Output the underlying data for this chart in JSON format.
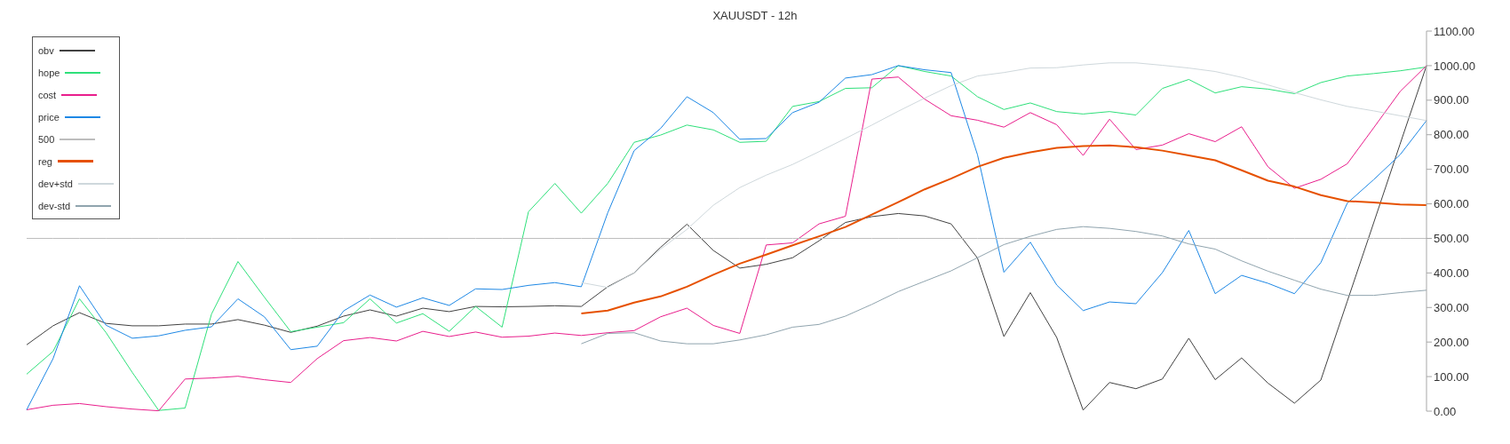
{
  "chart_data": {
    "type": "line",
    "title": "XAUUSDT - 12h",
    "categories": [
      null,
      null,
      null,
      null,
      null,
      null,
      null,
      null,
      null,
      null,
      null,
      null,
      null,
      null,
      null,
      null,
      null,
      null,
      null,
      null,
      null,
      null,
      null,
      null,
      null,
      null,
      null,
      null,
      null,
      null,
      null,
      null,
      null,
      null,
      null,
      null,
      null,
      null,
      null,
      null,
      null,
      null,
      null,
      null,
      null,
      null,
      null,
      null,
      null,
      null,
      null,
      null,
      null,
      null
    ],
    "series": [
      {
        "name": "obv",
        "color": "#424242",
        "values": [
          192,
          247,
          285,
          254,
          247,
          247,
          252,
          252,
          265,
          249,
          228,
          246,
          275,
          293,
          275,
          298,
          288,
          303,
          302,
          303,
          305,
          303,
          360,
          400,
          474,
          541,
          465,
          414,
          425,
          444,
          493,
          546,
          563,
          572,
          565,
          542,
          443,
          216,
          343,
          213,
          3,
          83,
          65,
          93,
          211,
          91,
          154,
          81,
          23,
          90,
          318,
          545,
          773,
          1000
        ]
      },
      {
        "name": "hope",
        "color": "#2ee07a",
        "values": [
          107,
          173,
          325,
          228,
          112,
          2,
          9,
          281,
          433,
          330,
          230,
          243,
          256,
          325,
          255,
          282,
          231,
          303,
          243,
          577,
          659,
          573,
          659,
          778,
          799,
          828,
          814,
          778,
          781,
          882,
          896,
          934,
          936,
          1000,
          983,
          970,
          910,
          873,
          892,
          867,
          860,
          867,
          857,
          934,
          960,
          921,
          939,
          932,
          919,
          951,
          970,
          977,
          985,
          996
        ]
      },
      {
        "name": "cost",
        "color": "#e91e8c",
        "values": [
          4,
          17,
          22,
          13,
          6,
          1,
          93,
          96,
          101,
          91,
          83,
          152,
          204,
          213,
          203,
          231,
          216,
          229,
          214,
          217,
          226,
          219,
          227,
          233,
          273,
          298,
          248,
          225,
          481,
          487,
          542,
          564,
          961,
          967,
          903,
          855,
          842,
          822,
          864,
          829,
          740,
          845,
          757,
          770,
          803,
          780,
          823,
          707,
          645,
          671,
          716,
          820,
          925,
          1000
        ]
      },
      {
        "name": "price",
        "color": "#1e88e5",
        "values": [
          4,
          152,
          363,
          249,
          211,
          218,
          234,
          244,
          325,
          273,
          178,
          188,
          290,
          336,
          301,
          328,
          306,
          354,
          352,
          364,
          372,
          360,
          574,
          754,
          818,
          910,
          864,
          787,
          789,
          864,
          894,
          964,
          974,
          1000,
          988,
          980,
          742,
          402,
          489,
          365,
          291,
          316,
          311,
          401,
          523,
          340,
          393,
          370,
          340,
          430,
          602,
          670,
          742,
          841
        ]
      },
      {
        "name": "500",
        "color": "#bdbdbd",
        "values": [
          500,
          500,
          500,
          500,
          500,
          500,
          500,
          500,
          500,
          500,
          500,
          500,
          500,
          500,
          500,
          500,
          500,
          500,
          500,
          500,
          500,
          500,
          500,
          500,
          500,
          500,
          500,
          500,
          500,
          500,
          500,
          500,
          500,
          500,
          500,
          500,
          500,
          500,
          500,
          500,
          500,
          500,
          500,
          500,
          500,
          500,
          500,
          500,
          500,
          500,
          500,
          500,
          500,
          500
        ]
      },
      {
        "name": "reg",
        "color": "#e65100",
        "values": [
          null,
          null,
          null,
          null,
          null,
          null,
          null,
          null,
          null,
          null,
          null,
          null,
          null,
          null,
          null,
          null,
          null,
          null,
          null,
          null,
          null,
          283,
          291,
          314,
          332,
          360,
          395,
          427,
          453,
          480,
          506,
          533,
          569,
          605,
          642,
          673,
          707,
          733,
          749,
          762,
          767,
          769,
          764,
          754,
          740,
          726,
          697,
          667,
          650,
          625,
          608,
          604,
          598,
          596
        ]
      },
      {
        "name": "dev+std",
        "color": "#cfd8dc",
        "values": [
          null,
          null,
          null,
          null,
          null,
          null,
          null,
          null,
          null,
          null,
          null,
          null,
          null,
          null,
          null,
          null,
          null,
          null,
          null,
          null,
          null,
          372,
          358,
          400,
          469,
          526,
          596,
          647,
          683,
          714,
          751,
          789,
          828,
          868,
          906,
          942,
          970,
          980,
          993,
          994,
          1002,
          1008,
          1008,
          1001,
          993,
          983,
          966,
          944,
          922,
          901,
          882,
          869,
          855,
          841
        ]
      },
      {
        "name": "dev-std",
        "color": "#90a4ae",
        "values": [
          null,
          null,
          null,
          null,
          null,
          null,
          null,
          null,
          null,
          null,
          null,
          null,
          null,
          null,
          null,
          null,
          null,
          null,
          null,
          null,
          null,
          195,
          225,
          227,
          203,
          195,
          195,
          206,
          221,
          243,
          251,
          275,
          309,
          346,
          376,
          406,
          444,
          482,
          506,
          526,
          534,
          529,
          520,
          507,
          484,
          469,
          435,
          405,
          379,
          353,
          335,
          335,
          343,
          350
        ]
      }
    ],
    "ylim": [
      0,
      1100
    ],
    "yticks": [
      {
        "value": 0,
        "label": "0.00"
      },
      {
        "value": 100,
        "label": "100.00"
      },
      {
        "value": 200,
        "label": "200.00"
      },
      {
        "value": 300,
        "label": "300.00"
      },
      {
        "value": 400,
        "label": "400.00"
      },
      {
        "value": 500,
        "label": "500.00"
      },
      {
        "value": 600,
        "label": "600.00"
      },
      {
        "value": 700,
        "label": "700.00"
      },
      {
        "value": 800,
        "label": "800.00"
      },
      {
        "value": 900,
        "label": "900.00"
      },
      {
        "value": 1000,
        "label": "1000.00"
      },
      {
        "value": 1100,
        "label": "1100.00"
      }
    ],
    "grid": false,
    "legend": "top left",
    "marker": "none",
    "line_style": "solid"
  }
}
